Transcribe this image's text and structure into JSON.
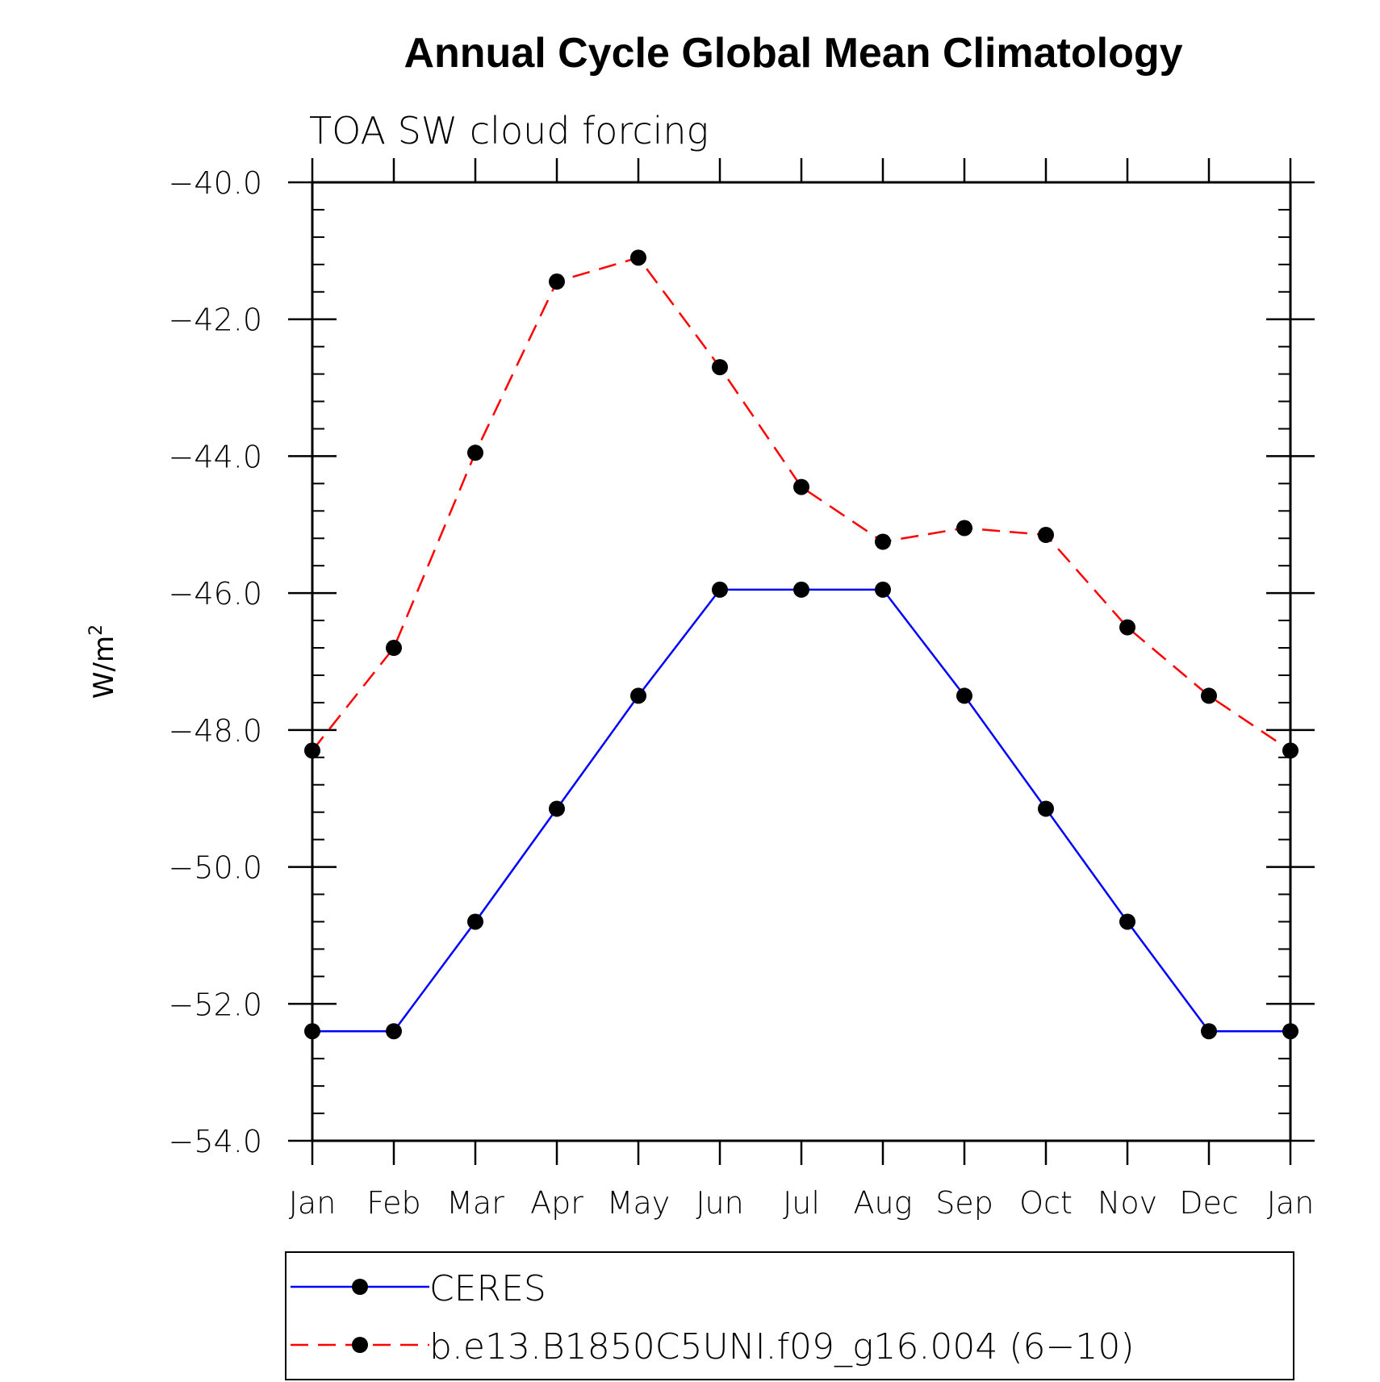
{
  "chart_data": {
    "type": "line",
    "title": "Annual Cycle Global Mean Climatology",
    "subtitle": "TOA SW cloud forcing",
    "ylabel": "W/m",
    "ylabel_sup": "2",
    "xlabel": "",
    "categories": [
      "Jan",
      "Feb",
      "Mar",
      "Apr",
      "May",
      "Jun",
      "Jul",
      "Aug",
      "Sep",
      "Oct",
      "Nov",
      "Dec",
      "Jan"
    ],
    "ylim": [
      -54.0,
      -40.0
    ],
    "yticks": [
      -40.0,
      -42.0,
      -44.0,
      -46.0,
      -48.0,
      -50.0,
      -52.0,
      -54.0
    ],
    "ytick_labels": [
      "−40.0",
      "−42.0",
      "−44.0",
      "−46.0",
      "−48.0",
      "−50.0",
      "−52.0",
      "−54.0"
    ],
    "series": [
      {
        "name": "CERES",
        "color": "#0000ff",
        "dash": "solid",
        "values": [
          -52.4,
          -52.4,
          -50.8,
          -49.15,
          -47.5,
          -45.95,
          -45.95,
          -45.95,
          -47.5,
          -49.15,
          -50.8,
          -52.4,
          -52.4
        ]
      },
      {
        "name": "b.e13.B1850C5UNI.f09_g16.004 (6−10)",
        "color": "#ff0000",
        "dash": "dashed",
        "values": [
          -48.3,
          -46.8,
          -43.95,
          -41.45,
          -41.1,
          -42.7,
          -44.45,
          -45.25,
          -45.05,
          -45.15,
          -46.5,
          -47.5,
          -48.3
        ]
      }
    ],
    "legend_position": "bottom"
  }
}
